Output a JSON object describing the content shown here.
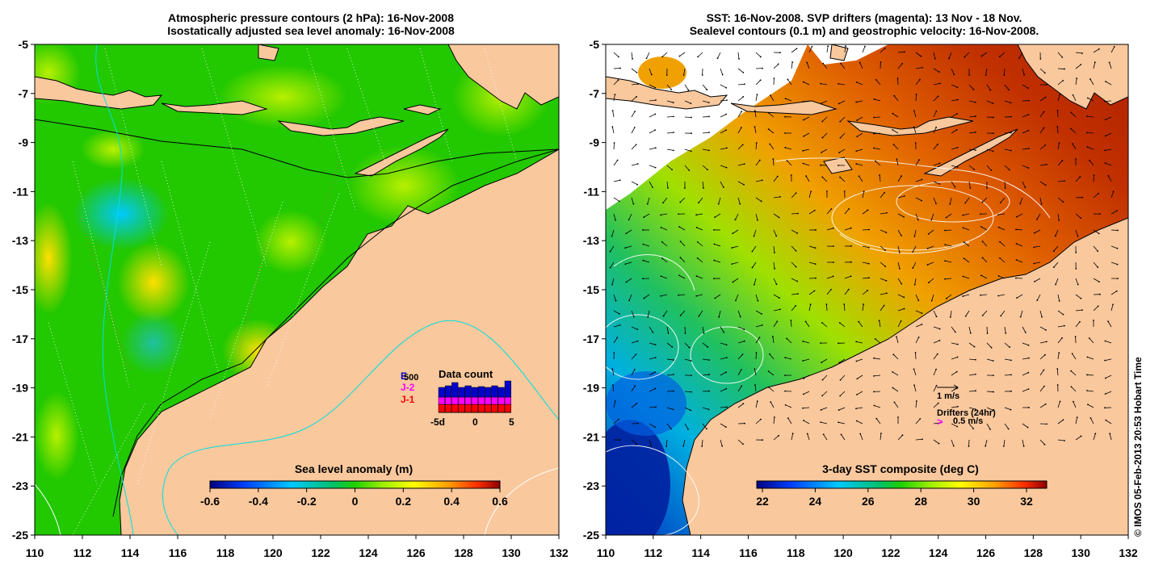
{
  "left_panel": {
    "title_line1": "Atmospheric pressure contours (2 hPa): 16-Nov-2008",
    "title_line2": "Isostatically adjusted sea level anomaly: 16-Nov-2008",
    "colorbar_title": "Sea level anomaly (m)",
    "colorbar_ticks": [
      "-0.6",
      "-0.4",
      "-0.2",
      "0",
      "0.2",
      "0.4",
      "0.6"
    ],
    "legend": {
      "title": "Data count",
      "labels": [
        "E",
        "J-2",
        "J-1"
      ],
      "label_colors": [
        "#0000cc",
        "#ff00ff",
        "#ff0000"
      ],
      "overlap_text": "500",
      "x_ticks": [
        "-5d",
        "0",
        "5"
      ]
    }
  },
  "right_panel": {
    "title_line1": "SST: 16-Nov-2008. SVP drifters (magenta): 13 Nov - 18 Nov.",
    "title_line2": "Sealevel contours (0.1 m) and geostrophic velocity: 16-Nov-2008.",
    "colorbar_title": "3-day SST composite (deg C)",
    "colorbar_ticks": [
      "22",
      "24",
      "26",
      "28",
      "30",
      "32"
    ],
    "velocity_key": "1 m/s",
    "drifters_label": "Drifters (24hr)",
    "drifters_speed": "0.5 m/s",
    "drifters_symbol": ">"
  },
  "axes": {
    "y_ticks": [
      "-5",
      "-7",
      "-9",
      "-11",
      "-13",
      "-15",
      "-17",
      "-19",
      "-21",
      "-23",
      "-25"
    ],
    "x_ticks": [
      "110",
      "112",
      "114",
      "116",
      "118",
      "120",
      "122",
      "124",
      "126",
      "128",
      "130",
      "132"
    ]
  },
  "credit": "© IMOS 05-Feb-2013 20:53 Hobart Time",
  "colors": {
    "land": "#f9c89d",
    "sla_cmap": [
      "#00007f",
      "#0050ff",
      "#00c8ff",
      "#00c070",
      "#20d000",
      "#90f000",
      "#ffff00",
      "#ffa000",
      "#ff3000",
      "#900000"
    ],
    "sst_cmap": [
      "#00007f",
      "#0050ff",
      "#00c8ff",
      "#00c070",
      "#20d000",
      "#90f000",
      "#ffff00",
      "#ffa000",
      "#ff3000",
      "#900000"
    ]
  }
}
